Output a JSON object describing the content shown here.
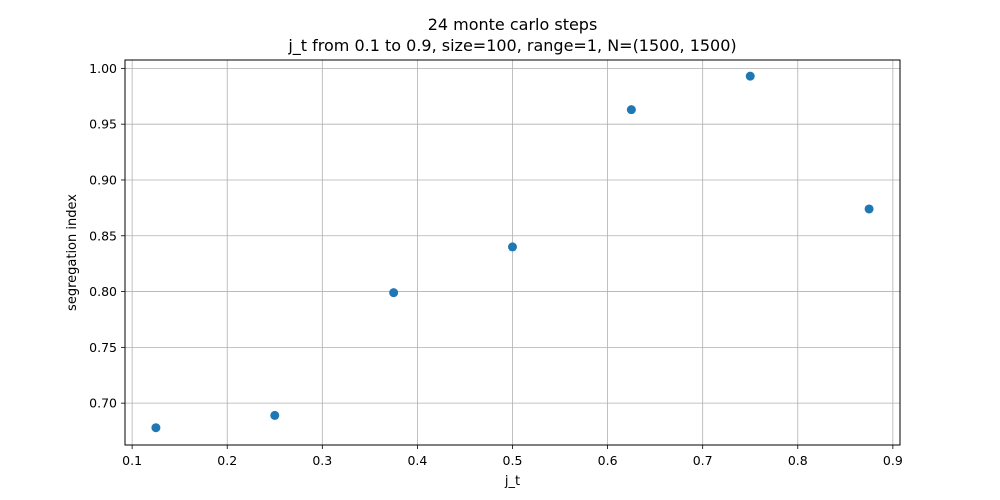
{
  "chart_data": {
    "type": "scatter",
    "title": "24 monte carlo steps",
    "subtitle": "j_t from 0.1 to 0.9, size=100, range=1, N=(1500, 1500)",
    "xlabel": "j_t",
    "ylabel": "segregation index",
    "xlim": [
      0.0925,
      0.9075
    ],
    "ylim": [
      0.6625,
      1.0075
    ],
    "xticks": [
      0.1,
      0.2,
      0.3,
      0.4,
      0.5,
      0.6,
      0.7,
      0.8,
      0.9
    ],
    "xtick_labels": [
      "0.1",
      "0.2",
      "0.3",
      "0.4",
      "0.5",
      "0.6",
      "0.7",
      "0.8",
      "0.9"
    ],
    "yticks": [
      0.7,
      0.75,
      0.8,
      0.85,
      0.9,
      0.95,
      1.0
    ],
    "ytick_labels": [
      "0.70",
      "0.75",
      "0.80",
      "0.85",
      "0.90",
      "0.95",
      "1.00"
    ],
    "grid": true,
    "legend": null,
    "series": [
      {
        "color": "#1f77b4",
        "x": [
          0.125,
          0.25,
          0.375,
          0.5,
          0.625,
          0.75,
          0.875
        ],
        "y": [
          0.678,
          0.689,
          0.799,
          0.84,
          0.963,
          0.993,
          0.874
        ]
      }
    ]
  }
}
